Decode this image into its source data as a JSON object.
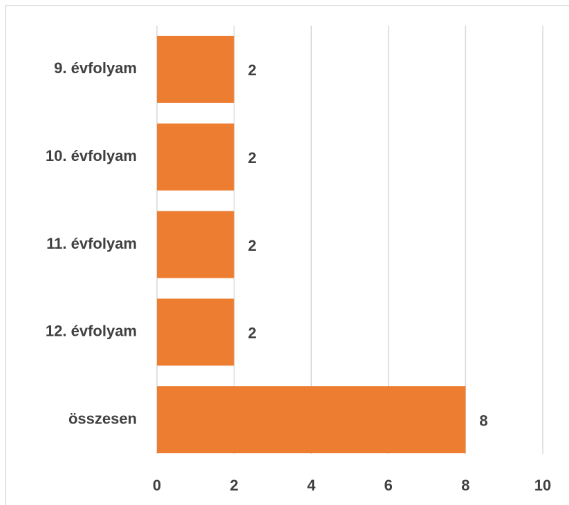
{
  "chart_data": {
    "type": "bar",
    "orientation": "horizontal",
    "categories": [
      "9. évfolyam",
      "10. évfolyam",
      "11. évfolyam",
      "12. évfolyam",
      "összesen"
    ],
    "values": [
      2,
      2,
      2,
      2,
      8
    ],
    "color": "#ed7d31",
    "xlim": [
      0,
      10
    ],
    "xticks": [
      0,
      2,
      4,
      6,
      8,
      10
    ],
    "grid": true
  }
}
